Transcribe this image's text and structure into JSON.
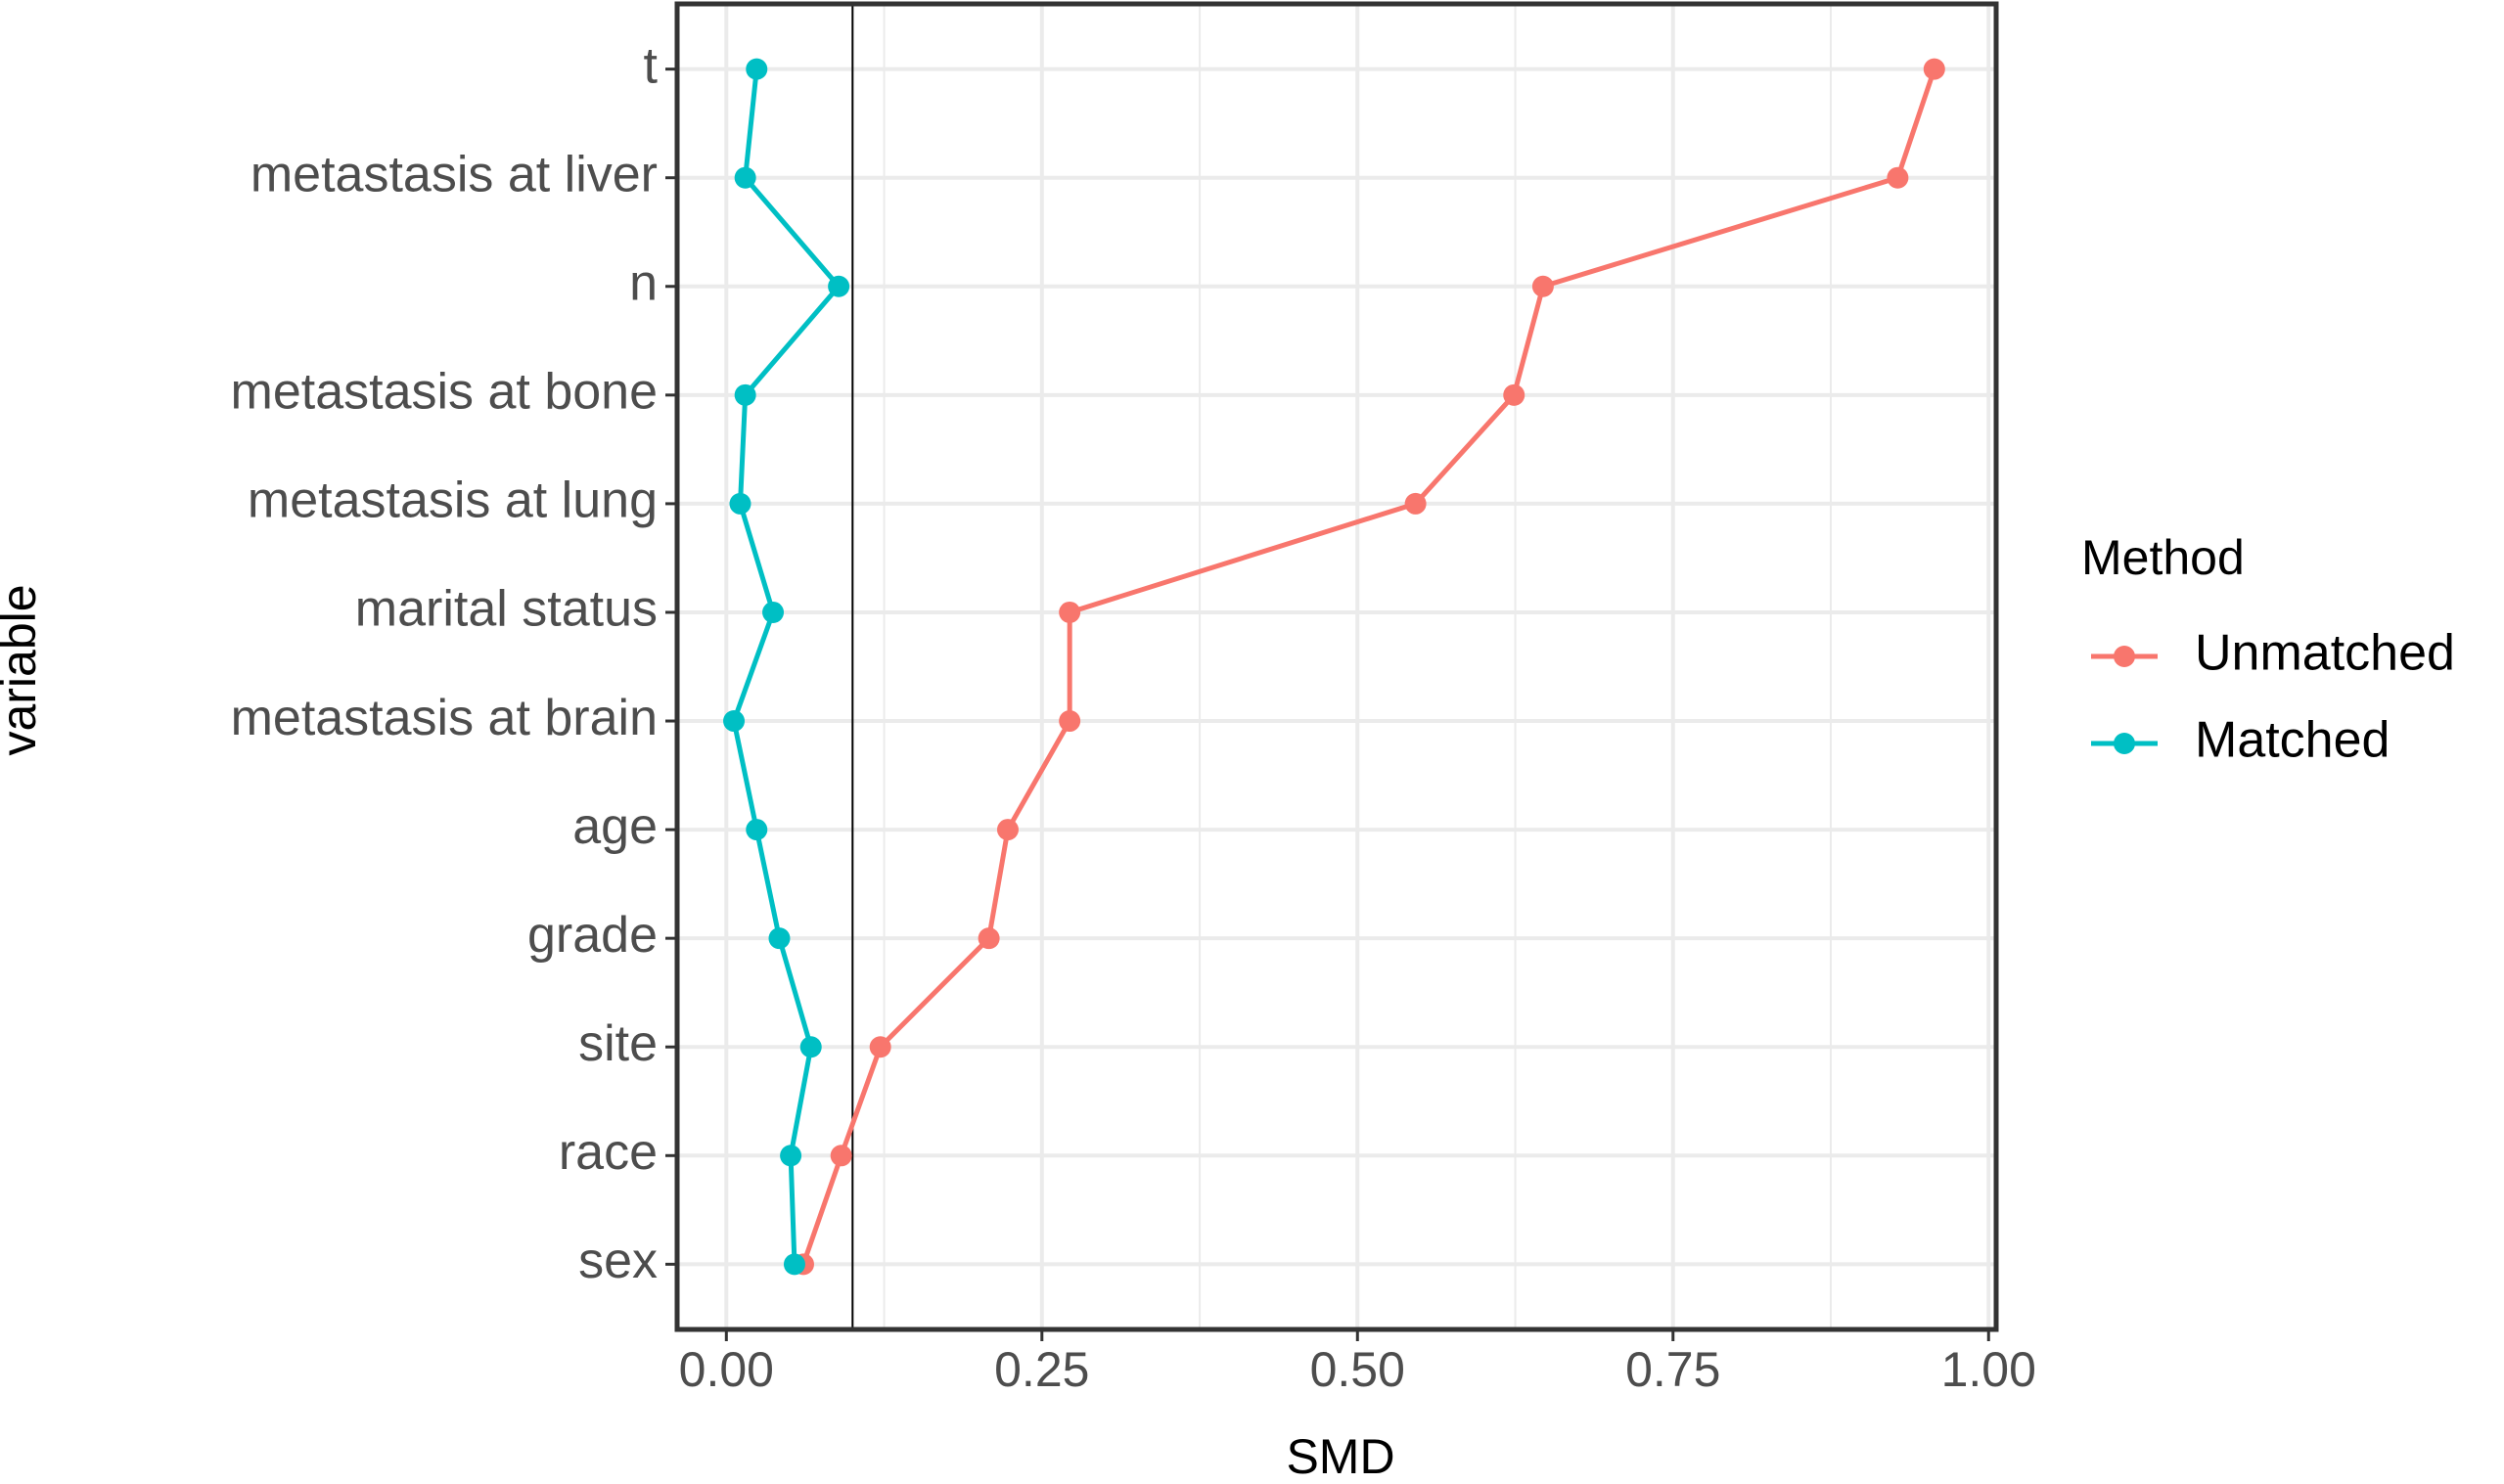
{
  "chart_data": {
    "type": "line",
    "x_label": "SMD",
    "y_label": "variable",
    "categories": [
      "t",
      "metastasis at liver",
      "n",
      "metastasis at bone",
      "metastasis at lung",
      "marital status",
      "metastasis at brain",
      "age",
      "grade",
      "site",
      "race",
      "sex"
    ],
    "series": [
      {
        "name": "Unmatched",
        "color": "#F8766D",
        "values": [
          0.957,
          0.928,
          0.647,
          0.624,
          0.546,
          0.272,
          0.272,
          0.223,
          0.208,
          0.122,
          0.091,
          0.061
        ]
      },
      {
        "name": "Matched",
        "color": "#00BFC4",
        "values": [
          0.024,
          0.015,
          0.089,
          0.015,
          0.011,
          0.037,
          0.006,
          0.024,
          0.042,
          0.067,
          0.051,
          0.054
        ]
      }
    ],
    "xlim": [
      -0.039,
      1.006
    ],
    "xticks": [
      {
        "value": 0,
        "label": "0.00"
      },
      {
        "value": 0.25,
        "label": "0.25"
      },
      {
        "value": 0.5,
        "label": "0.50"
      },
      {
        "value": 0.75,
        "label": "0.75"
      },
      {
        "value": 1,
        "label": "1.00"
      }
    ],
    "minor_xticks": [
      0.125,
      0.375,
      0.625,
      0.875
    ],
    "vline": 0.1,
    "grid": true,
    "legend_title": "Method",
    "legend_position": "right"
  }
}
